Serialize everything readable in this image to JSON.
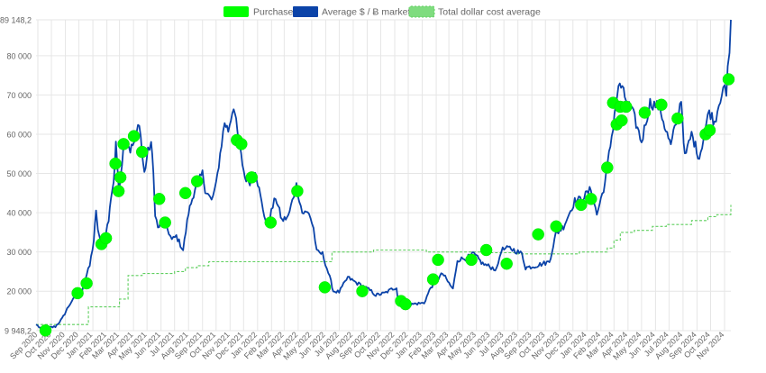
{
  "colors": {
    "purchases": "#00ff00",
    "price": "#0b43a8",
    "dca": "#7fdc7f",
    "grid": "#e6e6e6",
    "axis_text": "#666666"
  },
  "chart_data": {
    "type": "line",
    "title": "",
    "xlabel": "",
    "ylabel": "",
    "grid": true,
    "legend_placement": "top-center",
    "ylim": [
      9948.2,
      89148.2
    ],
    "ylim_labels": [
      "9 948,2",
      "89 148,2"
    ],
    "y_ticks": [
      20000,
      30000,
      40000,
      50000,
      60000,
      70000,
      80000
    ],
    "y_tick_labels": [
      "20 000",
      "30 000",
      "40 000",
      "50 000",
      "60 000",
      "70 000",
      "80 000"
    ],
    "x_range": [
      "2020-08-28",
      "2024-11-15"
    ],
    "x_ticks": [
      "2020-09-01",
      "2020-10-01",
      "2020-11-01",
      "2020-12-01",
      "2021-01-01",
      "2021-02-01",
      "2021-03-01",
      "2021-04-01",
      "2021-05-01",
      "2021-06-01",
      "2021-07-01",
      "2021-08-01",
      "2021-09-01",
      "2021-10-01",
      "2021-11-01",
      "2021-12-01",
      "2022-01-01",
      "2022-02-01",
      "2022-03-01",
      "2022-04-01",
      "2022-05-01",
      "2022-06-01",
      "2022-07-01",
      "2022-08-01",
      "2022-09-01",
      "2022-10-01",
      "2022-11-01",
      "2022-12-01",
      "2023-01-01",
      "2023-02-01",
      "2023-03-01",
      "2023-04-01",
      "2023-05-01",
      "2023-06-01",
      "2023-07-01",
      "2023-08-01",
      "2023-09-01",
      "2023-10-01",
      "2023-11-01",
      "2023-12-01",
      "2024-01-01",
      "2024-02-01",
      "2024-03-01",
      "2024-04-01",
      "2024-05-01",
      "2024-06-01",
      "2024-07-01",
      "2024-08-01",
      "2024-09-01",
      "2024-10-01",
      "2024-11-01"
    ],
    "x_tick_labels": [
      "Sep 2020",
      "Oct 2020",
      "Nov 2020",
      "Dec 2020",
      "Jan 2021",
      "Feb 2021",
      "Mar 2021",
      "Apr 2021",
      "May 2021",
      "Jun 2021",
      "Jul 2021",
      "Aug 2021",
      "Sep 2021",
      "Oct 2021",
      "Nov 2021",
      "Dec 2021",
      "Jan 2022",
      "Feb 2022",
      "Mar 2022",
      "Apr 2022",
      "May 2022",
      "Jun 2022",
      "Jul 2022",
      "Aug 2022",
      "Sep 2022",
      "Oct 2022",
      "Nov 2022",
      "Dec 2022",
      "Jan 2023",
      "Feb 2023",
      "Mar 2023",
      "Apr 2023",
      "May 2023",
      "Jun 2023",
      "Jul 2023",
      "Aug 2023",
      "Sep 2023",
      "Oct 2023",
      "Nov 2023",
      "Dec 2023",
      "Jan 2024",
      "Feb 2024",
      "Mar 2024",
      "Apr 2024",
      "May 2024",
      "Jun 2024",
      "Jul 2024",
      "Aug 2024",
      "Sep 2024",
      "Oct 2024",
      "Nov 2024"
    ],
    "legend": [
      "Purchases",
      "Average $ / Ƀ market price",
      "Total dollar cost average"
    ],
    "series": [
      {
        "name": "Average $ / Ƀ market price",
        "type": "line",
        "x": [
          "2020-08-28",
          "2020-09-10",
          "2020-09-25",
          "2020-10-10",
          "2020-10-25",
          "2020-11-05",
          "2020-11-15",
          "2020-11-25",
          "2020-12-05",
          "2020-12-15",
          "2020-12-25",
          "2021-01-03",
          "2021-01-08",
          "2021-01-12",
          "2021-01-20",
          "2021-01-27",
          "2021-02-05",
          "2021-02-10",
          "2021-02-16",
          "2021-02-21",
          "2021-02-28",
          "2021-03-13",
          "2021-03-25",
          "2021-04-05",
          "2021-04-14",
          "2021-04-20",
          "2021-04-25",
          "2021-05-03",
          "2021-05-10",
          "2021-05-15",
          "2021-05-19",
          "2021-05-25",
          "2021-06-05",
          "2021-06-15",
          "2021-06-25",
          "2021-07-05",
          "2021-07-20",
          "2021-08-01",
          "2021-08-15",
          "2021-09-01",
          "2021-09-07",
          "2021-09-21",
          "2021-10-01",
          "2021-10-10",
          "2021-10-20",
          "2021-10-28",
          "2021-11-09",
          "2021-11-20",
          "2021-12-04",
          "2021-12-15",
          "2021-12-27",
          "2022-01-10",
          "2022-01-22",
          "2022-02-10",
          "2022-02-24",
          "2022-03-10",
          "2022-03-28",
          "2022-04-10",
          "2022-04-25",
          "2022-05-05",
          "2022-05-12",
          "2022-05-25",
          "2022-06-10",
          "2022-06-18",
          "2022-07-01",
          "2022-07-20",
          "2022-08-10",
          "2022-08-20",
          "2022-09-10",
          "2022-09-20",
          "2022-10-10",
          "2022-10-25",
          "2022-11-05",
          "2022-11-09",
          "2022-11-25",
          "2022-12-15",
          "2023-01-05",
          "2023-01-20",
          "2023-02-15",
          "2023-03-10",
          "2023-03-20",
          "2023-04-10",
          "2023-04-25",
          "2023-05-15",
          "2023-06-15",
          "2023-06-25",
          "2023-07-14",
          "2023-08-10",
          "2023-08-18",
          "2023-09-10",
          "2023-10-10",
          "2023-10-24",
          "2023-11-10",
          "2023-12-05",
          "2023-12-20",
          "2024-01-10",
          "2024-01-23",
          "2024-02-10",
          "2024-02-28",
          "2024-03-05",
          "2024-03-14",
          "2024-03-25",
          "2024-04-13",
          "2024-05-01",
          "2024-05-20",
          "2024-06-10",
          "2024-06-24",
          "2024-07-05",
          "2024-07-28",
          "2024-08-05",
          "2024-08-20",
          "2024-09-06",
          "2024-09-28",
          "2024-10-10",
          "2024-10-29",
          "2024-11-05",
          "2024-11-08",
          "2024-11-12",
          "2024-11-15"
        ],
        "y": [
          11500,
          10300,
          10700,
          11000,
          13000,
          15500,
          17500,
          18500,
          19200,
          23000,
          26500,
          33000,
          40000,
          36000,
          31000,
          34000,
          38000,
          44000,
          48000,
          57000,
          46000,
          60000,
          56000,
          58500,
          63500,
          55000,
          50000,
          55500,
          58000,
          50000,
          40000,
          36000,
          38000,
          36000,
          33000,
          34000,
          30500,
          40000,
          46000,
          50000,
          46000,
          43000,
          47000,
          55000,
          63000,
          61000,
          67500,
          58000,
          49000,
          48000,
          51000,
          42500,
          36500,
          44000,
          38000,
          39000,
          47000,
          40000,
          40000,
          36000,
          30000,
          29500,
          23500,
          20000,
          19800,
          23500,
          22000,
          21500,
          20000,
          19000,
          19500,
          20500,
          21000,
          17000,
          16300,
          16800,
          17000,
          21000,
          24500,
          20500,
          28000,
          28500,
          29500,
          27000,
          25500,
          30500,
          31000,
          29500,
          26000,
          26500,
          27500,
          34500,
          36500,
          43000,
          43500,
          46000,
          39500,
          47500,
          62000,
          68000,
          73000,
          69500,
          65000,
          58000,
          68000,
          67000,
          61000,
          57000,
          69000,
          54000,
          60000,
          54000,
          66000,
          63000,
          72500,
          69500,
          76000,
          81000,
          89148.2
        ]
      },
      {
        "name": "Total dollar cost average",
        "type": "step",
        "x": [
          "2020-08-28",
          "2020-12-01",
          "2020-12-22",
          "2021-02-15",
          "2021-03-01",
          "2021-03-20",
          "2021-04-20",
          "2021-07-01",
          "2021-07-25",
          "2021-08-20",
          "2021-09-15",
          "2021-12-01",
          "2022-06-15",
          "2022-09-15",
          "2023-01-10",
          "2023-05-15",
          "2023-08-01",
          "2023-12-15",
          "2024-02-15",
          "2024-03-01",
          "2024-03-15",
          "2024-04-15",
          "2024-05-25",
          "2024-06-25",
          "2024-08-20",
          "2024-09-25",
          "2024-10-15",
          "2024-11-15"
        ],
        "y": [
          11500,
          11500,
          16000,
          16000,
          18000,
          24000,
          24500,
          25000,
          26000,
          26500,
          27500,
          27500,
          30000,
          30500,
          30000,
          29800,
          29500,
          30000,
          31000,
          33000,
          35000,
          35500,
          36500,
          37000,
          38000,
          39000,
          39500,
          42000
        ]
      },
      {
        "name": "Purchases",
        "type": "scatter",
        "x": [
          "2020-09-18",
          "2020-11-28",
          "2020-12-18",
          "2021-01-20",
          "2021-01-30",
          "2021-02-20",
          "2021-02-27",
          "2021-03-03",
          "2021-03-10",
          "2021-04-02",
          "2021-04-20",
          "2021-05-28",
          "2021-06-10",
          "2021-07-25",
          "2021-08-20",
          "2021-11-16",
          "2021-11-26",
          "2021-12-19",
          "2022-01-30",
          "2022-03-30",
          "2022-05-30",
          "2022-08-21",
          "2022-11-15",
          "2022-11-25",
          "2023-01-25",
          "2023-02-05",
          "2023-04-20",
          "2023-05-23",
          "2023-07-07",
          "2023-09-15",
          "2023-10-25",
          "2023-12-19",
          "2024-01-10",
          "2024-02-15",
          "2024-02-28",
          "2024-03-07",
          "2024-03-15",
          "2024-03-18",
          "2024-03-28",
          "2024-05-08",
          "2024-06-14",
          "2024-07-20",
          "2024-09-20",
          "2024-09-29",
          "2024-11-10"
        ],
        "y": [
          10000,
          19500,
          22000,
          32000,
          33500,
          52500,
          45500,
          49000,
          57500,
          59500,
          55500,
          43500,
          37500,
          45000,
          48000,
          58500,
          57500,
          49000,
          37500,
          45500,
          21000,
          20000,
          17500,
          16700,
          23000,
          28000,
          28000,
          30500,
          27000,
          34500,
          36500,
          42000,
          43500,
          51500,
          68000,
          62500,
          67000,
          63500,
          67000,
          65500,
          67500,
          64000,
          60000,
          61000,
          74000
        ]
      }
    ]
  }
}
